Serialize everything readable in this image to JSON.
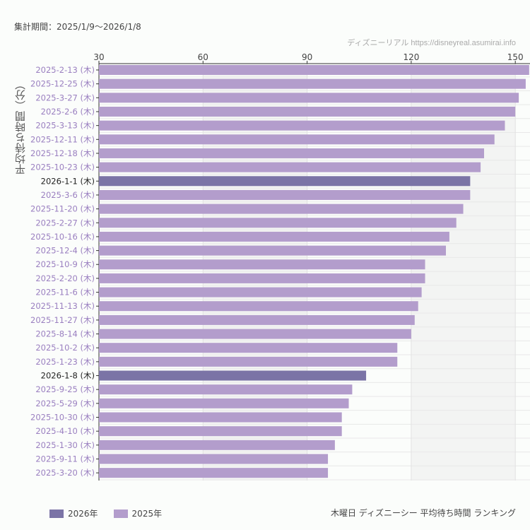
{
  "period_label": "集計期間：2025/1/9〜2026/1/8",
  "credit": "ディズニーリアル https://disneyreal.asumirai.info",
  "caption": "木曜日 ディズニーシー 平均待ち時間 ランキング",
  "chart_data": {
    "type": "bar",
    "orientation": "horizontal",
    "ylabel": "平均待ち時間（分）",
    "xlim": [
      30,
      154
    ],
    "xticks": [
      30,
      60,
      90,
      120,
      150
    ],
    "xaxis_position": "top",
    "grid": true,
    "legend_position": "bottom-left",
    "legend": [
      {
        "name": "2026年",
        "color": "#7b74a6"
      },
      {
        "name": "2025年",
        "color": "#b39dcc"
      }
    ],
    "categories": [
      "2025-2-13 (木)",
      "2025-12-25 (木)",
      "2025-3-27 (木)",
      "2025-2-6 (木)",
      "2025-3-13 (木)",
      "2025-12-11 (木)",
      "2025-12-18 (木)",
      "2025-10-23 (木)",
      "2026-1-1 (木)",
      "2025-3-6 (木)",
      "2025-11-20 (木)",
      "2025-2-27 (木)",
      "2025-10-16 (木)",
      "2025-12-4 (木)",
      "2025-10-9 (木)",
      "2025-2-20 (木)",
      "2025-11-6 (木)",
      "2025-11-13 (木)",
      "2025-11-27 (木)",
      "2025-8-14 (木)",
      "2025-10-2 (木)",
      "2025-1-23 (木)",
      "2026-1-8 (木)",
      "2025-9-25 (木)",
      "2025-5-29 (木)",
      "2025-10-30 (木)",
      "2025-4-10 (木)",
      "2025-1-30 (木)",
      "2025-9-11 (木)",
      "2025-3-20 (木)"
    ],
    "values": [
      154,
      153,
      151,
      150,
      147,
      144,
      141,
      140,
      137,
      137,
      135,
      133,
      131,
      130,
      124,
      124,
      123,
      122,
      121,
      120,
      116,
      116,
      107,
      103,
      102,
      100,
      100,
      98,
      96,
      96
    ],
    "year": [
      "2025",
      "2025",
      "2025",
      "2025",
      "2025",
      "2025",
      "2025",
      "2025",
      "2026",
      "2025",
      "2025",
      "2025",
      "2025",
      "2025",
      "2025",
      "2025",
      "2025",
      "2025",
      "2025",
      "2025",
      "2025",
      "2025",
      "2026",
      "2025",
      "2025",
      "2025",
      "2025",
      "2025",
      "2025",
      "2025"
    ]
  }
}
